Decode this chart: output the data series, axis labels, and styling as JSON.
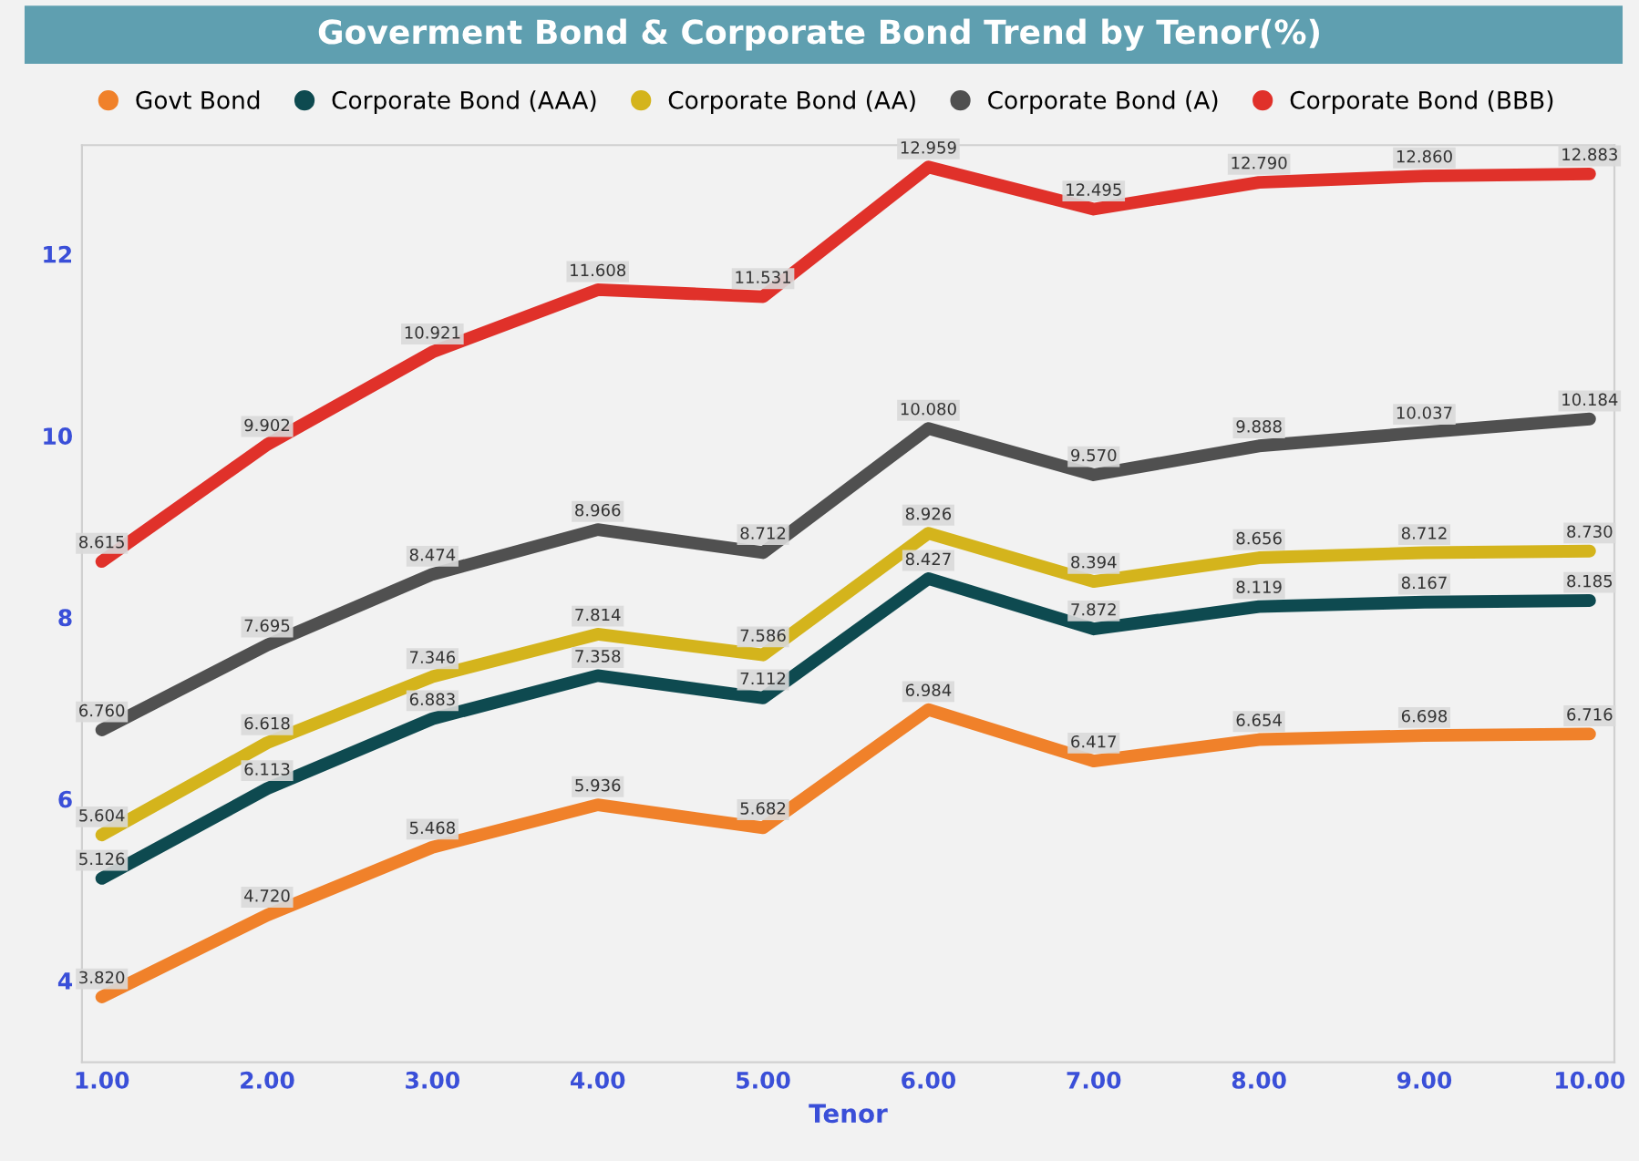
{
  "chart_data": {
    "type": "line",
    "title": "Goverment Bond & Corporate Bond Trend by Tenor(%)",
    "xlabel": "Tenor",
    "x": [
      1,
      2,
      3,
      4,
      5,
      6,
      7,
      8,
      9,
      10
    ],
    "xlim": [
      0.88,
      10.15
    ],
    "xticks": [
      {
        "value": 1,
        "label": "1.00"
      },
      {
        "value": 2,
        "label": "2.00"
      },
      {
        "value": 3,
        "label": "3.00"
      },
      {
        "value": 4,
        "label": "4.00"
      },
      {
        "value": 5,
        "label": "5.00"
      },
      {
        "value": 6,
        "label": "6.00"
      },
      {
        "value": 7,
        "label": "7.00"
      },
      {
        "value": 8,
        "label": "8.00"
      },
      {
        "value": 9,
        "label": "9.00"
      },
      {
        "value": 10,
        "label": "10.00"
      }
    ],
    "ylim": [
      3.1,
      13.2
    ],
    "yticks": [
      4,
      6,
      8,
      10,
      12
    ],
    "legend": "top",
    "grid": false,
    "marker": "none",
    "line_style": "solid",
    "series": [
      {
        "name": "Govt Bond",
        "color": "#f0812a",
        "values": [
          3.82,
          4.72,
          5.468,
          5.936,
          5.682,
          6.984,
          6.417,
          6.654,
          6.698,
          6.716
        ],
        "value_labels": [
          "3.820",
          "4.720",
          "5.468",
          "5.936",
          "5.682",
          "6.984",
          "6.417",
          "6.654",
          "6.698",
          "6.716"
        ]
      },
      {
        "name": "Corporate Bond (AAA)",
        "color": "#0e4a50",
        "values": [
          5.126,
          6.113,
          6.883,
          7.358,
          7.112,
          8.427,
          7.872,
          8.119,
          8.167,
          8.185
        ],
        "value_labels": [
          "5.126",
          "6.113",
          "6.883",
          "7.358",
          "7.112",
          "8.427",
          "7.872",
          "8.119",
          "8.167",
          "8.185"
        ]
      },
      {
        "name": "Corporate Bond (AA)",
        "color": "#d4b41c",
        "values": [
          5.604,
          6.618,
          7.346,
          7.814,
          7.586,
          8.926,
          8.394,
          8.656,
          8.712,
          8.73
        ],
        "value_labels": [
          "5.604",
          "6.618",
          "7.346",
          "7.814",
          "7.586",
          "8.926",
          "8.394",
          "8.656",
          "8.712",
          "8.730"
        ]
      },
      {
        "name": "Corporate Bond (A)",
        "color": "#505050",
        "values": [
          6.76,
          7.695,
          8.474,
          8.966,
          8.712,
          10.08,
          9.57,
          9.888,
          10.037,
          10.184
        ],
        "value_labels": [
          "6.760",
          "7.695",
          "8.474",
          "8.966",
          "8.712",
          "10.080",
          "9.570",
          "9.888",
          "10.037",
          "10.184"
        ]
      },
      {
        "name": "Corporate Bond (BBB)",
        "color": "#e0312a",
        "values": [
          8.615,
          9.902,
          10.921,
          11.608,
          11.531,
          12.959,
          12.495,
          12.79,
          12.86,
          12.883
        ],
        "value_labels": [
          "8.615",
          "9.902",
          "10.921",
          "11.608",
          "11.531",
          "12.959",
          "12.495",
          "12.790",
          "12.860",
          "12.883"
        ]
      }
    ]
  }
}
